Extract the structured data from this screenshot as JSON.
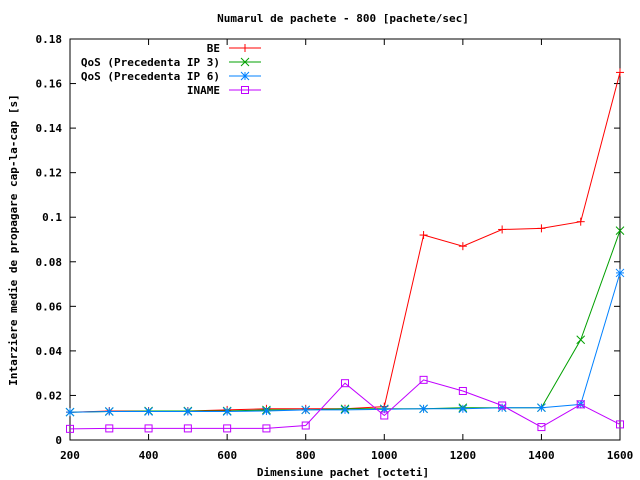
{
  "chart_data": {
    "type": "line",
    "title": "Numarul de pachete - 800 [pachete/sec]",
    "xlabel": "Dimensiune pachet [octeti]",
    "ylabel": "Intarziere medie de propagare cap-la-cap [s]",
    "xlim": [
      200,
      1600
    ],
    "ylim": [
      0,
      0.18
    ],
    "xticks": [
      200,
      400,
      600,
      800,
      1000,
      1200,
      1400,
      1600
    ],
    "yticks": [
      0,
      0.02,
      0.04,
      0.06,
      0.08,
      0.1,
      0.12,
      0.14,
      0.16,
      0.18
    ],
    "ytick_labels": [
      "0",
      "0.02",
      "0.04",
      "0.06",
      "0.08",
      "0.1",
      "0.12",
      "0.14",
      "0.16",
      "0.18"
    ],
    "grid": false,
    "legend_position": "top-left",
    "x": [
      200,
      300,
      400,
      500,
      600,
      700,
      800,
      900,
      1000,
      1100,
      1200,
      1300,
      1400,
      1500,
      1600
    ],
    "series": [
      {
        "name": "BE",
        "color": "#ff0000",
        "marker": "plus",
        "values": [
          0.0125,
          0.013,
          0.013,
          0.013,
          0.0135,
          0.014,
          0.014,
          0.014,
          0.015,
          0.092,
          0.087,
          0.0945,
          0.095,
          0.098,
          0.165
        ]
      },
      {
        "name": "QoS (Precedenta IP 3)",
        "color": "#00a000",
        "marker": "cross",
        "values": [
          0.0125,
          0.0128,
          0.013,
          0.013,
          0.013,
          0.0135,
          0.0135,
          0.014,
          0.014,
          0.014,
          0.0145,
          0.0145,
          0.0145,
          0.045,
          0.094
        ]
      },
      {
        "name": "QoS (Precedenta IP 6)",
        "color": "#0080ff",
        "marker": "star",
        "values": [
          0.0125,
          0.0128,
          0.0128,
          0.0128,
          0.0128,
          0.013,
          0.0135,
          0.0135,
          0.0138,
          0.014,
          0.014,
          0.0145,
          0.0145,
          0.016,
          0.075
        ]
      },
      {
        "name": "INAME",
        "color": "#c000ff",
        "marker": "square",
        "values": [
          0.005,
          0.0052,
          0.0052,
          0.0052,
          0.0052,
          0.0052,
          0.0065,
          0.0255,
          0.011,
          0.027,
          0.022,
          0.0155,
          0.0058,
          0.016,
          0.007
        ]
      }
    ]
  }
}
